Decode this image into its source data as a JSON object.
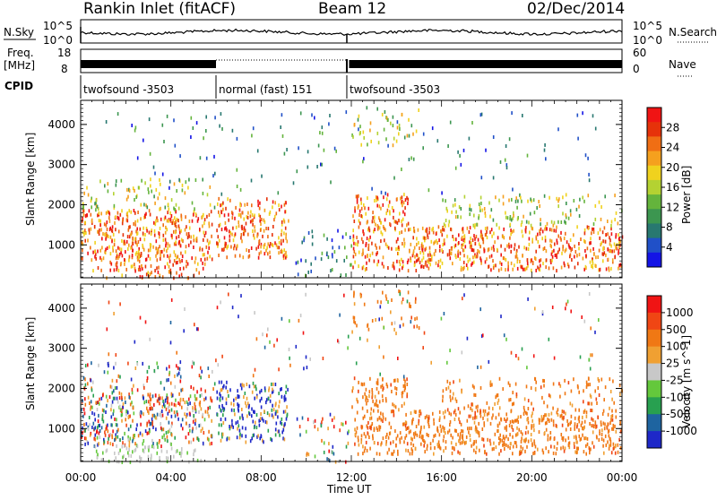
{
  "header": {
    "title": "Rankin Inlet (fitACF)",
    "beam": "Beam 12",
    "date": "02/Dec/2014"
  },
  "status_panels": {
    "nsky_label": "N.Sky",
    "nsky_ticks": [
      "10^5",
      "10^0"
    ],
    "nsearch_label": "N.Search",
    "nsearch_ticks": [
      "10^5",
      "10^0"
    ],
    "freq_label": "Freq.",
    "freq_unit": "[MHz]",
    "freq_ticks": [
      "18",
      "8"
    ],
    "nave_label": "Nave",
    "nave_ticks": [
      "60",
      "0"
    ],
    "cpid_label": "CPID",
    "cpid_segments": [
      {
        "label": "twofsound -3503",
        "start_hour": 0,
        "end_hour": 6
      },
      {
        "label": "normal (fast) 151",
        "start_hour": 6,
        "end_hour": 11.8
      },
      {
        "label": "twofsound -3503",
        "start_hour": 11.8,
        "end_hour": 24
      }
    ]
  },
  "chart_data": [
    {
      "type": "heatmap",
      "title": "",
      "xlabel": "Time UT",
      "ylabel": "Slant Range [km]",
      "xlim": [
        0,
        24
      ],
      "ylim": [
        180,
        4600
      ],
      "x_ticks": [
        "00:00",
        "04:00",
        "08:00",
        "12:00",
        "16:00",
        "20:00",
        "00:00"
      ],
      "y_ticks": [
        1000,
        2000,
        3000,
        4000
      ],
      "colorbar": {
        "label": "Power [dB]",
        "range": [
          0,
          32
        ],
        "ticks": [
          4,
          8,
          12,
          16,
          20,
          24,
          28
        ],
        "colors": [
          "#1414e6",
          "#2050c8",
          "#287870",
          "#3c9650",
          "#64b43c",
          "#b4d232",
          "#f0d21e",
          "#f5a01e",
          "#f06e14",
          "#e6320a",
          "#f01414"
        ]
      }
    },
    {
      "type": "heatmap",
      "title": "",
      "xlabel": "Time UT",
      "ylabel": "Slant Range [km]",
      "xlim": [
        0,
        24
      ],
      "ylim": [
        180,
        4600
      ],
      "x_ticks": [
        "00:00",
        "04:00",
        "08:00",
        "12:00",
        "16:00",
        "20:00",
        "00:00"
      ],
      "y_ticks": [
        1000,
        2000,
        3000,
        4000
      ],
      "colorbar": {
        "label": "Velocity [m s^-1]",
        "ticks": [
          "1000",
          "500",
          "100",
          "25",
          "-25",
          "-100",
          "-500",
          "-1000"
        ],
        "colors": [
          "#1e28c8",
          "#1e64a0",
          "#28a050",
          "#64c83c",
          "#c8c8c8",
          "#f0a032",
          "#f07814",
          "#f04614",
          "#f01414"
        ]
      }
    }
  ],
  "colors": {
    "grey_scatter": "#c8c8c8"
  }
}
